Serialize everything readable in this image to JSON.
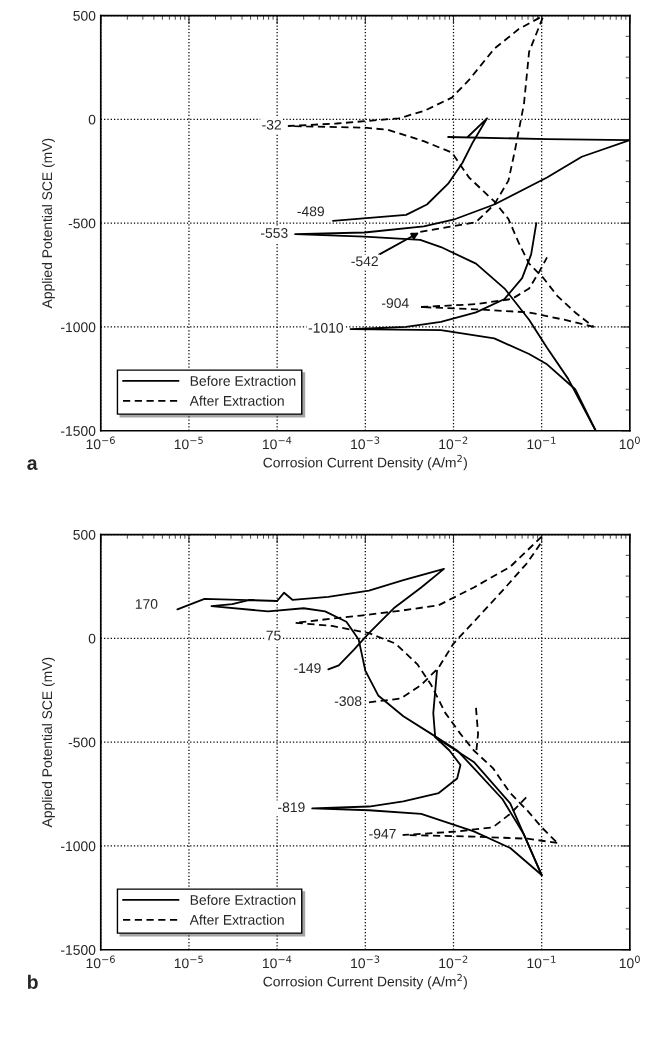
{
  "chart_data": [
    {
      "type": "line",
      "xlabel": "Corrosion Current Density (A/m$^{2}$)",
      "ylabel": "Applied Potential SCE (mV)",
      "log": "x",
      "xlim": [
        1e-06,
        1
      ],
      "ylim": [
        -1500,
        500
      ],
      "xticks": [
        {
          "value": 1e-06,
          "label": "10$^{−6}$"
        },
        {
          "value": 1e-05,
          "label": "10$^{−5}$"
        },
        {
          "value": 0.0001,
          "label": "10$^{−4}$"
        },
        {
          "value": 0.001,
          "label": "10$^{−3}$"
        },
        {
          "value": 0.01,
          "label": "10$^{−2}$"
        },
        {
          "value": 0.1,
          "label": "10$^{−1}$"
        },
        {
          "value": 1,
          "label": "10$^{0}$"
        }
      ],
      "yticks": [
        -1500,
        -1000,
        -500,
        0,
        500
      ],
      "grid": true,
      "legend": "bottom left",
      "series": [
        {
          "name": "Before Extraction",
          "color": "#000000",
          "line_style": "solid",
          "x": [
            0.087,
            0.076,
            0.06,
            0.038,
            0.018,
            0.0072,
            0.0029,
            0.00068,
            0.0072,
            0.029,
            0.072,
            0.115,
            0.24,
            0.41
          ],
          "values": [
            -500,
            -650,
            -765,
            -865,
            -930,
            -975,
            -1000,
            -1010,
            -1015,
            -1055,
            -1130,
            -1180,
            -1300,
            -1500
          ]
        },
        {
          "color": "#000000",
          "line_style": "solid",
          "x": [
            0.41,
            0.2,
            0.115,
            0.072,
            0.038,
            0.018,
            0.0072,
            0.0042,
            0.00098,
            0.00016,
            0.00098,
            0.0046,
            0.0105,
            0.029,
            0.115,
            0.285,
            1.0,
            0.115,
            0.0087
          ],
          "values": [
            -1500,
            -1250,
            -1100,
            -965,
            -815,
            -695,
            -615,
            -580,
            -565,
            -553,
            -545,
            -515,
            -480,
            -410,
            -280,
            -180,
            -100,
            -95,
            -85
          ]
        },
        {
          "color": "#000000",
          "line_style": "solid",
          "x": [
            0.00043,
            0.0029,
            0.005,
            0.0087,
            0.0126,
            0.0166,
            0.024,
            0.0145
          ],
          "values": [
            -489,
            -460,
            -410,
            -310,
            -210,
            -110,
            5,
            -85
          ]
        },
        {
          "name": "After Extraction",
          "color": "#000000",
          "line_style": "dashed",
          "x": [
            0.095,
            0.055,
            0.029,
            0.015,
            0.0096,
            0.0046,
            0.0024,
            0.00047,
            0.000135,
            0.00098,
            0.0018,
            0.0046,
            0.0096,
            0.015,
            0.029,
            0.042,
            0.055,
            0.072,
            0.105,
            0.15,
            0.24,
            0.39
          ],
          "values": [
            490,
            435,
            340,
            190,
            105,
            40,
            5,
            -20,
            -32,
            -40,
            -50,
            -105,
            -160,
            -280,
            -395,
            -480,
            -595,
            -695,
            -765,
            -850,
            -930,
            -1000
          ]
        },
        {
          "color": "#000000",
          "line_style": "dashed",
          "x": [
            0.0042,
            0.0072,
            0.018,
            0.029,
            0.042,
            0.05,
            0.063,
            0.072,
            0.105
          ],
          "values": [
            -542,
            -525,
            -495,
            -410,
            -295,
            -145,
            75,
            325,
            500
          ]
        },
        {
          "color": "#000000",
          "line_style": "dashed",
          "x": [
            0.39,
            0.18,
            0.072,
            0.018,
            0.0042,
            0.018,
            0.046,
            0.072,
            0.095,
            0.115
          ],
          "values": [
            -1000,
            -965,
            -930,
            -915,
            -904,
            -890,
            -865,
            -815,
            -730,
            -665
          ]
        }
      ],
      "annotations": [
        {
          "text": "-32",
          "x": 0.000135,
          "y": -32
        },
        {
          "text": "-489",
          "x": 0.00043,
          "y": -489
        },
        {
          "text": "-553",
          "x": 0.00016,
          "y": -553
        },
        {
          "text": "-542",
          "x": 0.0042,
          "y": -542
        },
        {
          "text": "-904",
          "x": 0.0042,
          "y": -904
        },
        {
          "text": "-1010",
          "x": 0.00068,
          "y": -1010
        },
        "a"
      ]
    },
    {
      "type": "line",
      "xlabel": "Corrosion Current Density (A/m$^{2}$)",
      "ylabel": "Applied Potential SCE (mV)",
      "log": "x",
      "xlim": [
        1e-06,
        1
      ],
      "ylim": [
        -1500,
        500
      ],
      "xticks": [
        {
          "value": 1e-06,
          "label": "10$^{−6}$"
        },
        {
          "value": 1e-05,
          "label": "10$^{−5}$"
        },
        {
          "value": 0.0001,
          "label": "10$^{−4}$"
        },
        {
          "value": 0.001,
          "label": "10$^{−3}$"
        },
        {
          "value": 0.01,
          "label": "10$^{−2}$"
        },
        {
          "value": 0.1,
          "label": "10$^{−1}$"
        },
        {
          "value": 1,
          "label": "10$^{0}$"
        }
      ],
      "yticks": [
        -1500,
        -1000,
        -500,
        0,
        500
      ],
      "grid": true,
      "legend": "bottom left",
      "series": [
        {
          "name": "Before Extraction",
          "color": "#000000",
          "line_style": "solid",
          "x": [
            7.4e-06,
            1.5e-05,
            0.0001,
            4.9e-05,
            3.1e-05,
            1.8e-05,
            7.9e-05,
            0.0002,
            0.00035,
            0.00061,
            0.00084,
            0.001,
            0.0014,
            0.0027,
            0.0056,
            0.011,
            0.017,
            0.036,
            0.063,
            0.1
          ],
          "values": [
            140,
            190,
            180,
            185,
            165,
            155,
            130,
            145,
            130,
            80,
            -5,
            -155,
            -275,
            -375,
            -460,
            -540,
            -625,
            -775,
            -945,
            -1140
          ]
        },
        {
          "color": "#000000",
          "line_style": "solid",
          "x": [
            0.00038,
            0.0005,
            0.00074,
            0.0011,
            0.0021,
            0.0043,
            0.0078,
            0.0027,
            0.0011,
            0.00038,
            0.00015,
            0.00012,
            0.0001
          ],
          "values": [
            -149,
            -130,
            -55,
            25,
            145,
            245,
            335,
            280,
            230,
            200,
            185,
            220,
            180
          ]
        },
        {
          "color": "#000000",
          "line_style": "solid",
          "x": [
            0.1,
            0.044,
            0.017,
            0.0043,
            0.0011,
            0.00025,
            0.0011,
            0.0027,
            0.0068,
            0.011,
            0.012,
            0.009,
            0.0062,
            0.0059,
            0.0065
          ],
          "values": [
            -1140,
            -1010,
            -930,
            -845,
            -828,
            -819,
            -810,
            -785,
            -745,
            -675,
            -610,
            -540,
            -475,
            -360,
            -155
          ]
        },
        {
          "color": "#000000",
          "line_style": "solid",
          "x": [
            0.0062,
            0.017,
            0.044,
            0.1
          ],
          "values": [
            -475,
            -595,
            -795,
            -1140
          ]
        },
        {
          "name": "After Extraction",
          "color": "#000000",
          "line_style": "dashed",
          "x": [
            0.1,
            0.044,
            0.017,
            0.0068,
            0.0027,
            0.00089,
            0.00042,
            0.00016,
            0.00042,
            0.0011,
            0.0022,
            0.0039,
            0.0056,
            0.0081,
            0.012,
            0.017,
            0.028,
            0.044,
            0.069,
            0.1,
            0.15
          ],
          "values": [
            490,
            345,
            245,
            160,
            135,
            110,
            95,
            75,
            60,
            25,
            -25,
            -125,
            -225,
            -360,
            -460,
            -540,
            -625,
            -745,
            -830,
            -910,
            -985
          ]
        },
        {
          "color": "#000000",
          "line_style": "dashed",
          "x": [
            0.0011,
            0.0025,
            0.0043,
            0.0068,
            0.01,
            0.017,
            0.036,
            0.069,
            0.1
          ],
          "values": [
            -308,
            -290,
            -225,
            -140,
            -25,
            80,
            230,
            365,
            465
          ]
        },
        {
          "color": "#000000",
          "line_style": "dashed",
          "x": [
            0.15,
            0.069,
            0.017,
            0.0027,
            0.011,
            0.028,
            0.044,
            0.069
          ],
          "values": [
            -985,
            -965,
            -955,
            -947,
            -930,
            -910,
            -845,
            -760
          ]
        },
        {
          "color": "#000000",
          "line_style": "dashed",
          "x": [
            0.018,
            0.019,
            0.018
          ],
          "values": [
            -335,
            -460,
            -560
          ]
        }
      ],
      "annotations": [
        {
          "text": "170",
          "x": 7.4e-06,
          "y": 140
        },
        {
          "text": "75",
          "x": 0.00016,
          "y": 75
        },
        {
          "text": "-149",
          "x": 0.00038,
          "y": -149
        },
        {
          "text": "-308",
          "x": 0.0011,
          "y": -308
        },
        {
          "text": "-819",
          "x": 0.00025,
          "y": -819
        },
        {
          "text": "-947",
          "x": 0.0027,
          "y": -947
        },
        "b"
      ]
    }
  ]
}
